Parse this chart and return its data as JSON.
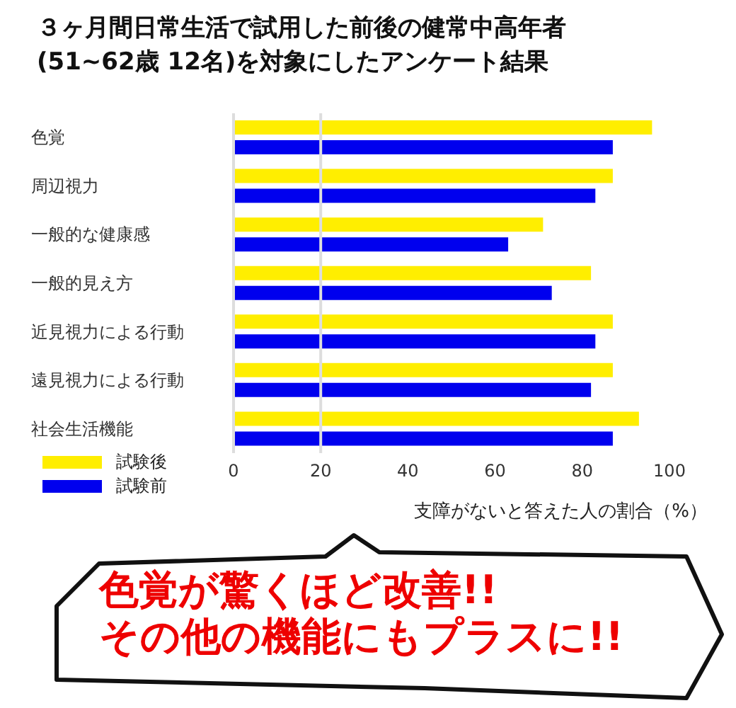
{
  "chart_data": {
    "type": "bar",
    "orientation": "horizontal",
    "title": "３ヶ月間日常生活で試用した前後の健常中高年者\n(51~62歳 12名)を対象にしたアンケート結果",
    "xlabel": "支障がないと答えた人の割合（%）",
    "categories": [
      "色覚",
      "周辺視力",
      "一般的な健康感",
      "一般的見え方",
      "近見視力による行動",
      "遠見視力による行動",
      "社会生活機能"
    ],
    "series": [
      {
        "name": "試験後",
        "color": "#ffee00",
        "values": [
          96,
          87,
          71,
          82,
          87,
          87,
          93
        ]
      },
      {
        "name": "試験前",
        "color": "#0000ee",
        "values": [
          87,
          83,
          63,
          73,
          83,
          82,
          87
        ]
      }
    ],
    "xlim": [
      0,
      100
    ],
    "xticks": [
      0,
      20,
      40,
      60,
      80,
      100
    ],
    "grid": false,
    "legend": "bottom left",
    "ref_lines": [
      {
        "axis": "x",
        "value": 20,
        "color": "#dddddd"
      }
    ],
    "annotations": [
      "色覚が驚くほど改善!!",
      "その他の機能にもプラスに!!"
    ]
  }
}
